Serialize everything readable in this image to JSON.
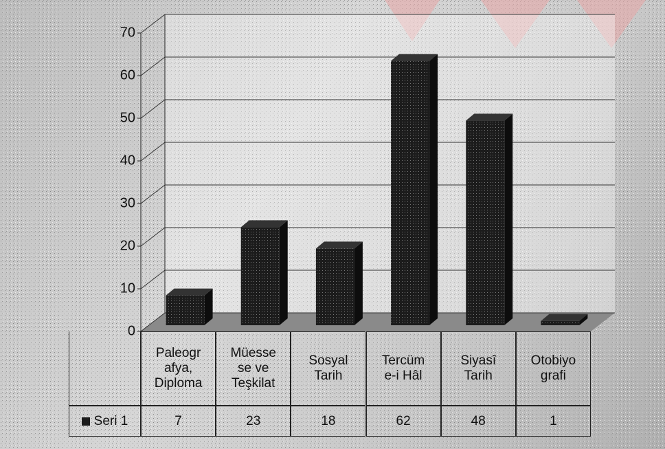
{
  "chart_data": {
    "type": "bar",
    "categories": [
      "Paleogr\nafya,\nDiploma",
      "Müesse\nse ve\nTeşkilat",
      "Sosyal\nTarih",
      "Tercüm\ne-i Hâl",
      "Siyasî\nTarih",
      "Otobiyo\ngrafi"
    ],
    "series": [
      {
        "name": "Seri 1",
        "color": "#1c1c1c",
        "values": [
          7,
          23,
          18,
          62,
          48,
          1
        ]
      }
    ],
    "ylim": [
      0,
      70
    ],
    "yticks": [
      0,
      10,
      20,
      30,
      40,
      50,
      60,
      70
    ],
    "grid": true
  }
}
